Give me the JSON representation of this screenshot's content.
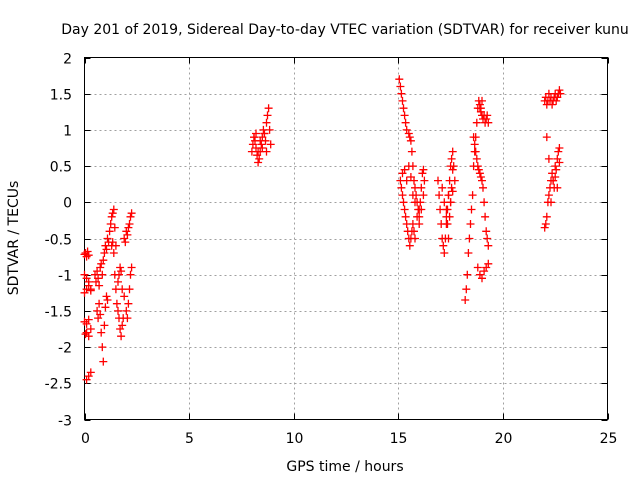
{
  "chart_data": {
    "type": "scatter",
    "title": "Day 201 of 2019, Sidereal Day-to-day VTEC variation (SDTVAR) for receiver kunu",
    "xlabel": "GPS time / hours",
    "ylabel": "SDTVAR / TECUs",
    "xlim": [
      0,
      25
    ],
    "ylim": [
      -3,
      2
    ],
    "xticks": [
      0,
      5,
      10,
      15,
      20,
      25
    ],
    "xtick_labels": [
      "0",
      "5",
      "10",
      "15",
      "20",
      "25"
    ],
    "yticks": [
      -3,
      -2.5,
      -2,
      -1.5,
      -1,
      -0.5,
      0,
      0.5,
      1,
      1.5,
      2
    ],
    "ytick_labels": [
      "-3",
      "-2.5",
      "-2",
      "-1.5",
      "-1",
      "-0.5",
      "0",
      "0.5",
      "1",
      "1.5",
      "2"
    ],
    "grid": true,
    "legend": "none",
    "marker": "plus",
    "color": "#ff0000",
    "series": [
      {
        "name": "SDTVAR",
        "x": [
          0.0,
          0.05,
          0.1,
          0.15,
          0.2,
          0.0,
          0.1,
          0.2,
          0.3,
          0.0,
          0.1,
          0.2,
          0.3,
          0.0,
          0.1,
          0.2,
          0.05,
          0.1,
          0.2,
          0.3,
          0.1,
          0.2,
          0.3,
          0.5,
          0.55,
          0.6,
          0.65,
          0.7,
          0.75,
          0.8,
          0.85,
          0.9,
          0.95,
          1.0,
          1.05,
          1.1,
          1.15,
          1.2,
          1.25,
          1.3,
          1.35,
          1.4,
          1.45,
          1.5,
          0.6,
          0.65,
          0.7,
          0.75,
          0.8,
          0.85,
          0.9,
          0.95,
          1.0,
          1.05,
          1.1,
          1.3,
          1.35,
          1.4,
          1.45,
          1.5,
          1.55,
          1.6,
          1.65,
          1.7,
          1.75,
          1.8,
          1.85,
          1.6,
          1.65,
          1.7,
          1.75,
          1.8,
          1.9,
          2.0,
          2.05,
          2.1,
          2.15,
          2.2,
          2.25,
          1.9,
          1.95,
          2.0,
          2.05,
          2.1,
          2.15,
          2.2,
          2.25,
          8.0,
          8.05,
          8.1,
          8.15,
          8.2,
          8.25,
          8.3,
          8.35,
          8.4,
          8.45,
          8.5,
          8.55,
          8.6,
          8.65,
          8.7,
          8.75,
          8.8,
          8.85,
          8.9,
          8.1,
          8.2,
          8.3,
          8.4,
          8.5,
          8.6,
          8.7,
          15.05,
          15.1,
          15.15,
          15.2,
          15.25,
          15.3,
          15.35,
          15.4,
          15.1,
          15.15,
          15.2,
          15.25,
          15.3,
          15.35,
          15.4,
          15.45,
          15.5,
          15.55,
          15.6,
          15.65,
          15.7,
          15.75,
          15.8,
          15.2,
          15.3,
          15.4,
          15.5,
          15.6,
          15.7,
          15.8,
          15.9,
          16.0,
          16.1,
          16.2,
          15.5,
          15.55,
          15.6,
          15.65,
          15.7,
          15.75,
          15.8,
          15.85,
          15.9,
          15.95,
          16.0,
          16.0,
          16.05,
          16.1,
          16.15,
          16.2,
          16.25,
          16.9,
          16.95,
          17.0,
          17.05,
          17.1,
          17.15,
          17.2,
          17.25,
          17.3,
          17.35,
          17.4,
          17.45,
          17.5,
          17.55,
          17.6,
          17.65,
          17.7,
          17.3,
          17.35,
          17.4,
          17.45,
          17.5,
          17.55,
          17.6,
          17.1,
          17.2,
          17.3,
          17.4,
          17.5,
          17.6,
          18.2,
          18.25,
          18.3,
          18.35,
          18.4,
          18.45,
          18.5,
          18.55,
          18.6,
          18.65,
          18.7,
          18.75,
          18.8,
          18.85,
          18.9,
          18.95,
          19.0,
          18.6,
          18.65,
          18.7,
          18.75,
          18.8,
          18.85,
          18.9,
          18.95,
          19.0,
          19.05,
          19.1,
          19.15,
          19.2,
          19.25,
          19.3,
          18.8,
          18.9,
          19.0,
          19.1,
          19.2,
          19.3,
          18.9,
          18.95,
          19.0,
          19.05,
          19.1,
          19.15,
          19.2,
          19.25,
          19.3,
          22.0,
          22.05,
          22.1,
          22.15,
          22.2,
          22.25,
          22.3,
          22.35,
          22.4,
          22.45,
          22.5,
          22.55,
          22.6,
          22.65,
          22.7,
          22.75,
          22.0,
          22.05,
          22.1,
          22.15,
          22.2,
          22.25,
          22.3,
          22.35,
          22.4,
          22.45,
          22.5,
          22.55,
          22.6,
          22.65,
          22.7,
          22.1,
          22.2,
          22.3,
          22.4,
          22.5,
          22.6,
          22.7
        ],
        "y": [
          -0.72,
          -0.7,
          -0.75,
          -0.68,
          -0.73,
          -1.0,
          -1.05,
          -1.1,
          -1.2,
          -1.25,
          -1.2,
          -1.15,
          -1.22,
          -1.65,
          -1.68,
          -1.62,
          -1.82,
          -1.8,
          -1.85,
          -1.75,
          -2.45,
          -2.4,
          -2.35,
          -1.0,
          -1.1,
          -0.95,
          -1.05,
          -1.15,
          -0.9,
          -0.85,
          -1.0,
          -0.8,
          -0.7,
          -0.6,
          -0.65,
          -0.5,
          -0.55,
          -0.4,
          -0.3,
          -0.2,
          -0.15,
          -0.1,
          -0.35,
          -0.6,
          -1.5,
          -1.6,
          -1.4,
          -1.55,
          -1.8,
          -2.0,
          -2.2,
          -1.7,
          -1.45,
          -1.3,
          -1.35,
          -0.6,
          -0.55,
          -0.7,
          -1.0,
          -1.2,
          -1.4,
          -1.5,
          -1.6,
          -1.75,
          -1.85,
          -1.7,
          -1.6,
          -1.1,
          -1.0,
          -0.9,
          -0.95,
          -1.2,
          -1.3,
          -1.5,
          -1.6,
          -1.4,
          -1.2,
          -1.0,
          -0.9,
          -0.5,
          -0.55,
          -0.4,
          -0.45,
          -0.35,
          -0.3,
          -0.2,
          -0.15,
          0.7,
          0.8,
          0.9,
          0.85,
          0.75,
          0.65,
          0.55,
          0.6,
          0.7,
          0.8,
          0.9,
          1.0,
          0.95,
          0.85,
          1.1,
          1.2,
          1.3,
          1.0,
          0.8,
          0.9,
          0.95,
          0.7,
          0.85,
          0.75,
          0.95,
          0.7,
          1.7,
          1.6,
          1.5,
          1.4,
          1.3,
          1.2,
          1.1,
          1.0,
          0.3,
          0.2,
          0.1,
          0.0,
          -0.1,
          -0.2,
          -0.3,
          -0.4,
          -0.5,
          -0.6,
          -0.5,
          -0.4,
          -0.3,
          -0.4,
          -0.5,
          0.4,
          0.45,
          0.3,
          0.5,
          0.35,
          0.1,
          0.0,
          -0.2,
          -0.3,
          -0.1,
          0.1,
          0.95,
          0.9,
          0.85,
          0.7,
          0.5,
          0.3,
          0.2,
          0.1,
          0.0,
          -0.1,
          -0.2,
          -0.1,
          0.0,
          0.2,
          0.4,
          0.45,
          0.3,
          0.3,
          0.1,
          -0.1,
          -0.3,
          -0.5,
          -0.6,
          -0.7,
          -0.5,
          -0.3,
          -0.1,
          0.1,
          0.3,
          0.5,
          0.6,
          0.7,
          0.5,
          0.3,
          -0.1,
          -0.3,
          -0.5,
          -0.2,
          0.0,
          0.2,
          0.45,
          0.2,
          0.0,
          -0.2,
          0.1,
          0.0,
          0.15,
          -1.35,
          -1.2,
          -1.0,
          -0.7,
          -0.5,
          -0.3,
          -0.1,
          0.1,
          0.5,
          0.7,
          0.9,
          1.1,
          1.3,
          1.4,
          1.35,
          1.3,
          1.4,
          0.9,
          0.8,
          0.7,
          0.6,
          0.5,
          0.45,
          0.4,
          0.35,
          0.3,
          0.2,
          0.0,
          -0.2,
          -0.4,
          -0.5,
          -0.6,
          -0.9,
          -1.0,
          -1.05,
          -0.95,
          -0.9,
          -0.85,
          1.3,
          1.25,
          1.2,
          1.15,
          1.2,
          1.1,
          1.15,
          1.2,
          1.1,
          1.4,
          1.45,
          1.35,
          1.4,
          1.5,
          1.4,
          1.45,
          1.35,
          1.4,
          1.45,
          1.5,
          1.4,
          1.45,
          1.5,
          1.55,
          1.5,
          -0.35,
          -0.3,
          -0.2,
          0.0,
          0.1,
          0.2,
          0.3,
          0.4,
          0.3,
          0.2,
          0.35,
          0.45,
          0.6,
          0.7,
          0.75,
          0.9,
          0.6,
          0.0,
          0.3,
          0.5,
          0.2,
          0.55
        ]
      }
    ]
  }
}
